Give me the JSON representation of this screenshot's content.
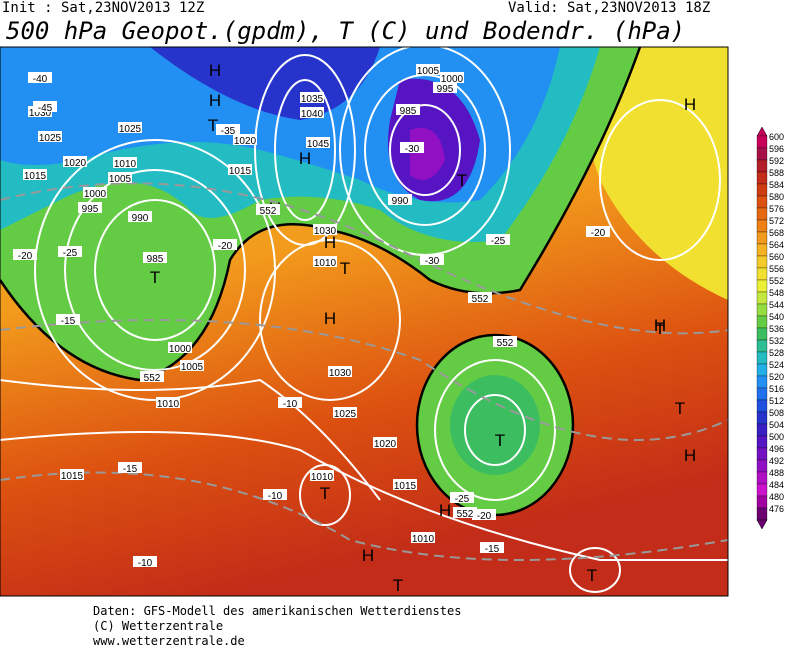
{
  "header": {
    "init": "Init : Sat,23NOV2013 12Z",
    "valid": "Valid: Sat,23NOV2013 18Z",
    "title": "500 hPa Geopot.(gpdm), T (C) und Bodendr. (hPa)"
  },
  "map": {
    "labels": [
      "H",
      "H",
      "T",
      "H",
      "H",
      "T",
      "H",
      "T",
      "T",
      "H",
      "H",
      "H",
      "T",
      "T",
      "H",
      "T",
      "H",
      "T",
      "T",
      "H",
      "T",
      "1030",
      "1025",
      "1020",
      "1015",
      "1010",
      "1005",
      "1000",
      "995",
      "990",
      "985",
      "1040",
      "1045",
      "1035",
      "1005",
      "1000",
      "995",
      "990",
      "985",
      "1030",
      "1025",
      "1020",
      "1015",
      "1010",
      "1005",
      "1000",
      "1030",
      "1025",
      "1020",
      "1015",
      "1010",
      "1010",
      "1015",
      "1010",
      "-40",
      "-45",
      "-35",
      "-30",
      "-25",
      "-20",
      "-15",
      "-10",
      "-20",
      "-25",
      "-30",
      "-20",
      "-15",
      "-10",
      "-25",
      "-20",
      "-15",
      "-10",
      "552",
      "552",
      "552",
      "552",
      "552"
    ]
  },
  "legend": {
    "levels": [
      600,
      596,
      592,
      588,
      584,
      580,
      576,
      572,
      568,
      564,
      560,
      556,
      552,
      548,
      544,
      540,
      536,
      532,
      528,
      524,
      520,
      516,
      512,
      508,
      504,
      500,
      496,
      492,
      488,
      484,
      480,
      476
    ],
    "colors": [
      "#c8005a",
      "#a81048",
      "#b41e28",
      "#c22c18",
      "#d03c12",
      "#dc5010",
      "#e66812",
      "#ee8016",
      "#f29a1c",
      "#f4b222",
      "#f4ca28",
      "#f2e030",
      "#ecf034",
      "#c4e840",
      "#94dc40",
      "#64cc44",
      "#3cbe60",
      "#2cbe92",
      "#22bcc2",
      "#22aee6",
      "#2290f2",
      "#2070ee",
      "#2050e0",
      "#2634cc",
      "#3a1ec4",
      "#5614c2",
      "#7410c2",
      "#9210c4",
      "#b010c4",
      "#cc12cc",
      "#a000a0",
      "#6c0070"
    ]
  },
  "footer": {
    "line1": "Daten: GFS-Modell des amerikanischen Wetterdienstes",
    "line2": "(C) Wetterzentrale",
    "line3": "www.wetterzentrale.de"
  }
}
